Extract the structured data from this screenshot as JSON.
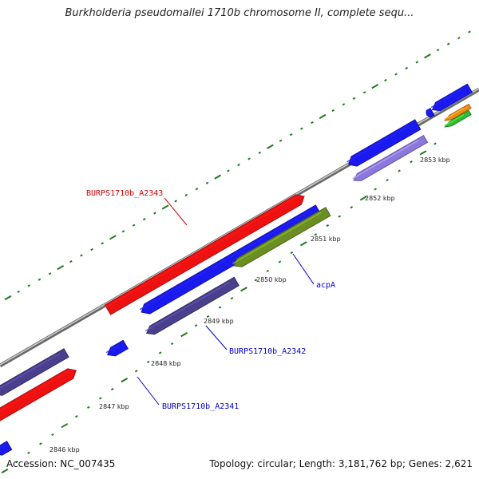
{
  "title": "Burkholderia pseudomallei 1710b chromosome II, complete sequ...",
  "footer": {
    "accession": "Accession: NC_007435",
    "summary": "Topology: circular; Length: 3,181,762 bp; Genes: 2,621"
  },
  "scale_labels": [
    "2846 kbp",
    "2847 kbp",
    "2848 kbp",
    "2849 kbp",
    "2850 kbp",
    "2851 kbp",
    "2852 kbp",
    "2853 kbp"
  ],
  "gene_labels": [
    {
      "text": "BURPS1710b_A2343",
      "color": "#d40000"
    },
    {
      "text": "acpA",
      "color": "#0000cc"
    },
    {
      "text": "BURPS1710b_A2342",
      "color": "#0000cc"
    },
    {
      "text": "BURPS1710b_A2341",
      "color": "#0000cc"
    }
  ],
  "colors": {
    "backbone": "#8c8c8c",
    "forward_cds": "#ee1111",
    "reverse_cds": "#1a1aee",
    "blast_hit": "#4a3f8c",
    "light_hit": "#8a78dc",
    "green_hit": "#6b8e23",
    "orange_hit": "#f08a18",
    "bright_green_hit": "#33bb33",
    "tick": "#1f7a1f",
    "label_line_red": "#d40000",
    "label_line_blue": "#0000cc"
  }
}
